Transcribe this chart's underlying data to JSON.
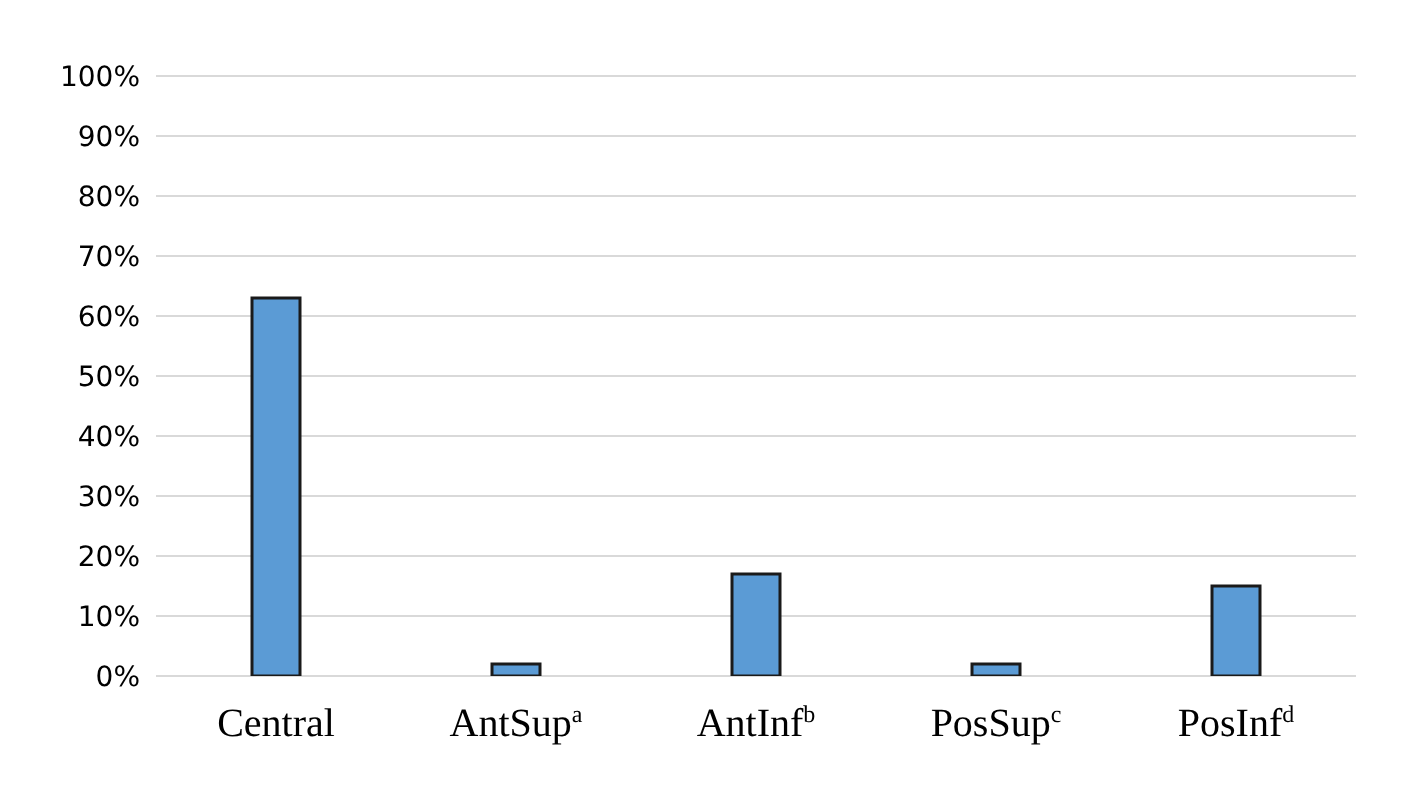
{
  "chart_data": {
    "type": "bar",
    "categories": [
      "Central",
      "AntSup$^{a}$",
      "AntInf$^{b}$",
      "PosSup$^{c}$",
      "PosInf$^{d}$"
    ],
    "values": [
      63,
      2,
      17,
      2,
      15
    ],
    "color": "#5b9bd5",
    "ylim": [
      0,
      100
    ],
    "yticks": [
      {
        "value": 0,
        "label": "0%"
      },
      {
        "value": 10,
        "label": "10%"
      },
      {
        "value": 20,
        "label": "20%"
      },
      {
        "value": 30,
        "label": "30%"
      },
      {
        "value": 40,
        "label": "40%"
      },
      {
        "value": 50,
        "label": "50%"
      },
      {
        "value": 60,
        "label": "60%"
      },
      {
        "value": 70,
        "label": "70%"
      },
      {
        "value": 80,
        "label": "80%"
      },
      {
        "value": 90,
        "label": "90%"
      },
      {
        "value": 100,
        "label": "100%"
      }
    ],
    "grid": "y"
  }
}
